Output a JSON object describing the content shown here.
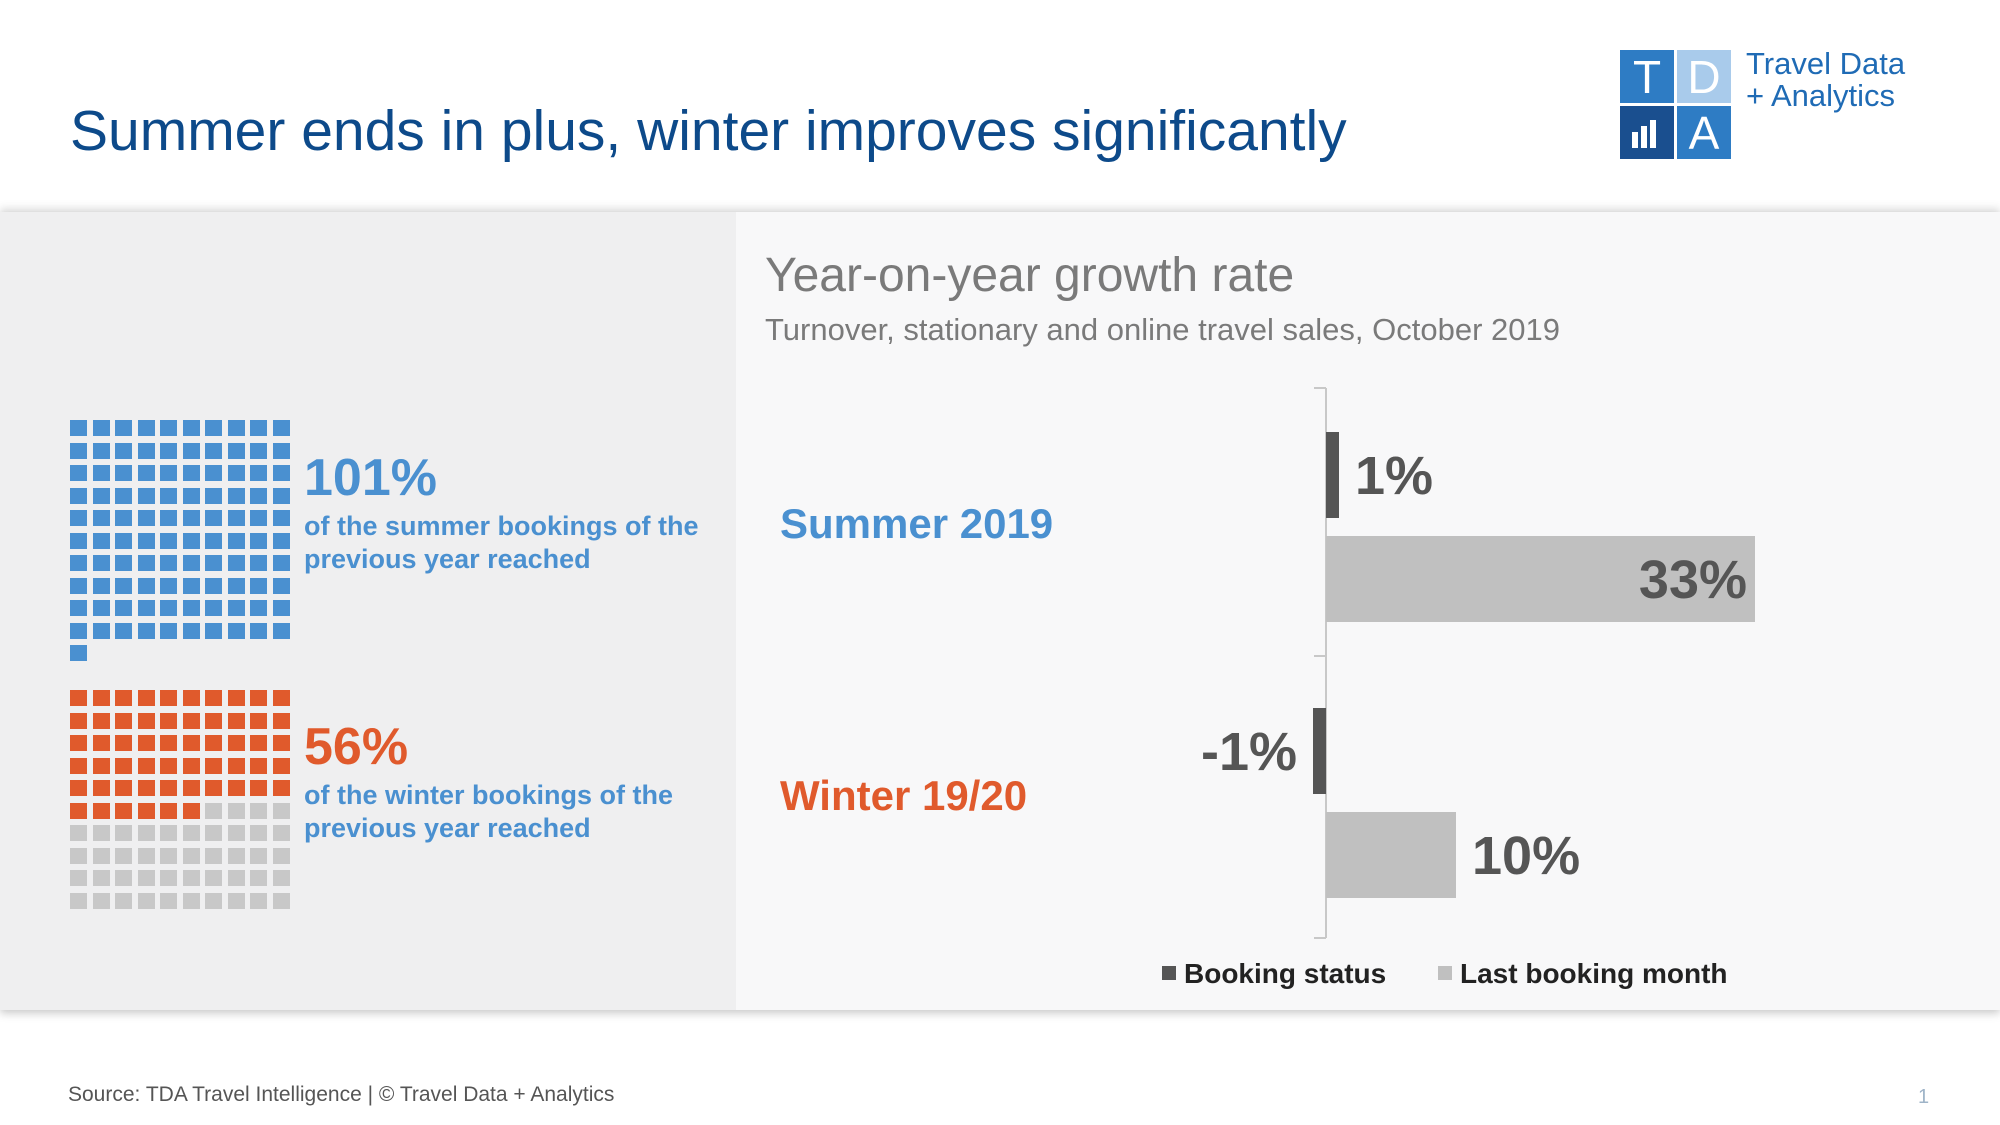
{
  "page": {
    "title": "Summer ends in plus, winter improves significantly",
    "footer": "Source: TDA Travel Intelligence   |  © Travel Data + Analytics",
    "page_number": "1"
  },
  "logo": {
    "letters": [
      "T",
      "D",
      "A"
    ],
    "text_line1": "Travel Data",
    "text_line2": "+ Analytics"
  },
  "waffles": [
    {
      "percent_label": "101%",
      "value": 101,
      "description": "of the summer bookings of the previous year reached",
      "fill_color": "#4a90d0",
      "empty_color": "#c8c8c8",
      "text_color": "#4a90d0"
    },
    {
      "percent_label": "56%",
      "value": 56,
      "description": "of the winter bookings of the previous year reached",
      "fill_color": "#e05a2c",
      "empty_color": "#c8c8c8",
      "text_color": "#e05a2c"
    }
  ],
  "chart_data": {
    "type": "bar",
    "orientation": "horizontal",
    "title": "Year-on-year growth rate",
    "subtitle": "Turnover, stationary and online travel sales, October 2019",
    "categories": [
      "Summer 2019",
      "Winter 19/20"
    ],
    "category_colors": [
      "#4a90d0",
      "#e05a2c"
    ],
    "series": [
      {
        "name": "Booking status",
        "values": [
          1,
          -1
        ],
        "labels": [
          "1%",
          "-1%"
        ],
        "color": "#555555"
      },
      {
        "name": "Last booking month",
        "values": [
          33,
          10
        ],
        "labels": [
          "33%",
          "10%"
        ],
        "color": "#c0c0c0"
      }
    ],
    "xlim": [
      -3,
      36
    ],
    "legend_position": "bottom"
  }
}
